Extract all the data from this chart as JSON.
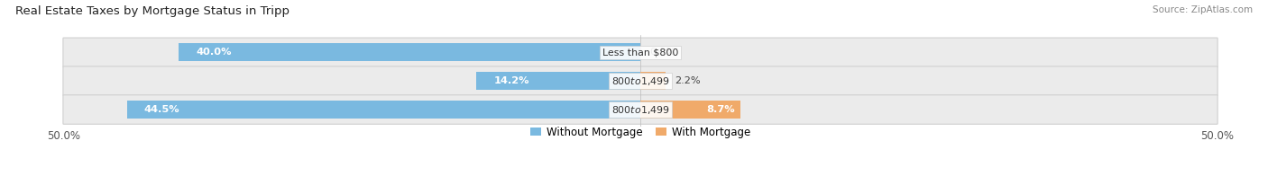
{
  "title": "Real Estate Taxes by Mortgage Status in Tripp",
  "source_text": "Source: ZipAtlas.com",
  "rows": [
    {
      "label": "Less than $800",
      "without_mortgage": 40.0,
      "with_mortgage": 0.0
    },
    {
      "label": "$800 to $1,499",
      "without_mortgage": 14.2,
      "with_mortgage": 2.2
    },
    {
      "label": "$800 to $1,499",
      "without_mortgage": 44.5,
      "with_mortgage": 8.7
    }
  ],
  "max_value": 50.0,
  "color_without": "#7ab9e0",
  "color_with": "#f0aa6a",
  "bg_row": "#ebebeb",
  "bg_main": "#ffffff",
  "bar_height": 0.62,
  "title_fontsize": 9.5,
  "label_fontsize": 8.2,
  "tick_fontsize": 8.5,
  "legend_fontsize": 8.5,
  "source_fontsize": 7.5
}
